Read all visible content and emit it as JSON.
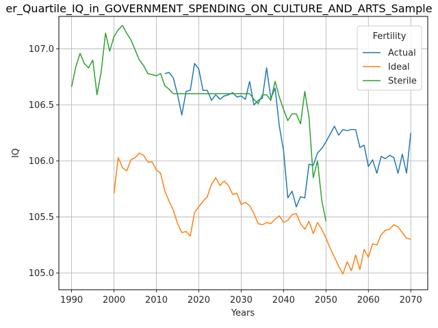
{
  "chart_data": {
    "type": "line",
    "title": "er_Quartile_IQ_in_GOVERNMENT_SPENDING_ON_CULTURE_AND_ARTS_Sample",
    "xlabel": "Years",
    "ylabel": "IQ",
    "xlim": [
      1987,
      2074
    ],
    "ylim": [
      104.85,
      107.29
    ],
    "xticks": [
      1990,
      2000,
      2010,
      2020,
      2030,
      2040,
      2050,
      2060,
      2070
    ],
    "yticks": [
      105.0,
      105.5,
      106.0,
      106.5,
      107.0
    ],
    "ytick_labels": [
      "105.0",
      "105.5",
      "106.0",
      "106.5",
      "107.0"
    ],
    "grid": true,
    "legend": {
      "title": "Fertility",
      "position": "top-right"
    },
    "series": [
      {
        "name": "Actual",
        "color": "#1f77b4",
        "x": [
          2012,
          2013,
          2014,
          2015,
          2016,
          2017,
          2018,
          2019,
          2020,
          2021,
          2022,
          2023,
          2024,
          2025,
          2026,
          2027,
          2028,
          2029,
          2030,
          2031,
          2032,
          2033,
          2034,
          2035,
          2036,
          2037,
          2038,
          2039,
          2040,
          2041,
          2042,
          2043,
          2044,
          2045,
          2046,
          2047,
          2048,
          2049,
          2050,
          2051,
          2052,
          2053,
          2054,
          2055,
          2056,
          2057,
          2058,
          2059,
          2060,
          2061,
          2062,
          2063,
          2064,
          2065,
          2066,
          2067,
          2068,
          2069,
          2070
        ],
        "y": [
          106.78,
          106.79,
          106.74,
          106.59,
          106.41,
          106.62,
          106.63,
          106.87,
          106.82,
          106.63,
          106.63,
          106.54,
          106.59,
          106.55,
          106.58,
          106.59,
          106.61,
          106.57,
          106.58,
          106.55,
          106.71,
          106.5,
          106.54,
          106.56,
          106.83,
          106.56,
          106.65,
          106.31,
          106.09,
          105.67,
          105.73,
          105.59,
          105.68,
          105.67,
          105.97,
          105.96,
          106.07,
          106.11,
          106.17,
          106.24,
          106.31,
          106.23,
          106.28,
          106.27,
          106.28,
          106.28,
          106.12,
          106.14,
          105.95,
          106.01,
          105.89,
          106.04,
          106.02,
          106.05,
          106.03,
          105.89,
          106.06,
          105.89,
          106.25
        ]
      },
      {
        "name": "Ideal",
        "color": "#ff7f0e",
        "x": [
          2000,
          2001,
          2002,
          2003,
          2004,
          2005,
          2006,
          2007,
          2008,
          2009,
          2010,
          2011,
          2012,
          2013,
          2014,
          2015,
          2016,
          2017,
          2018,
          2019,
          2020,
          2021,
          2022,
          2023,
          2024,
          2025,
          2026,
          2027,
          2028,
          2029,
          2030,
          2031,
          2032,
          2033,
          2034,
          2035,
          2036,
          2037,
          2038,
          2039,
          2040,
          2041,
          2042,
          2043,
          2044,
          2045,
          2046,
          2047,
          2048,
          2049,
          2050,
          2051,
          2052,
          2053,
          2054,
          2055,
          2056,
          2057,
          2058,
          2059,
          2060,
          2061,
          2062,
          2063,
          2064,
          2065,
          2066,
          2067,
          2068,
          2069,
          2070
        ],
        "y": [
          105.71,
          106.03,
          105.94,
          105.91,
          106.01,
          106.03,
          106.07,
          106.05,
          105.99,
          105.99,
          105.92,
          105.89,
          105.73,
          105.64,
          105.56,
          105.44,
          105.36,
          105.37,
          105.33,
          105.54,
          105.59,
          105.64,
          105.68,
          105.79,
          105.85,
          105.78,
          105.82,
          105.78,
          105.7,
          105.71,
          105.61,
          105.63,
          105.6,
          105.53,
          105.44,
          105.43,
          105.45,
          105.44,
          105.48,
          105.51,
          105.45,
          105.47,
          105.52,
          105.53,
          105.44,
          105.39,
          105.46,
          105.35,
          105.45,
          105.39,
          105.31,
          105.22,
          105.14,
          105.06,
          104.99,
          105.1,
          105.02,
          105.16,
          105.03,
          105.21,
          105.14,
          105.26,
          105.25,
          105.34,
          105.38,
          105.39,
          105.43,
          105.41,
          105.36,
          105.31,
          105.3
        ]
      },
      {
        "name": "Sterile",
        "color": "#2ca02c",
        "x": [
          1990,
          1991,
          1992,
          1993,
          1994,
          1995,
          1996,
          1997,
          1998,
          1999,
          2000,
          2001,
          2002,
          2003,
          2004,
          2005,
          2006,
          2007,
          2008,
          2009,
          2010,
          2011,
          2012,
          2013,
          2014,
          2015,
          2016,
          2017,
          2018,
          2019,
          2020,
          2021,
          2022,
          2023,
          2024,
          2025,
          2026,
          2027,
          2028,
          2029,
          2030,
          2031,
          2032,
          2033,
          2034,
          2035,
          2036,
          2037,
          2038,
          2039,
          2040,
          2041,
          2042,
          2043,
          2044,
          2045,
          2046,
          2047,
          2048,
          2049,
          2050
        ],
        "y": [
          106.66,
          106.84,
          106.96,
          106.87,
          106.83,
          106.9,
          106.59,
          106.8,
          107.14,
          106.98,
          107.11,
          107.17,
          107.21,
          107.14,
          107.08,
          106.99,
          106.9,
          106.85,
          106.78,
          106.77,
          106.76,
          106.78,
          106.67,
          106.64,
          106.6,
          106.6,
          106.6,
          106.6,
          106.6,
          106.6,
          106.6,
          106.6,
          106.6,
          106.6,
          106.6,
          106.6,
          106.6,
          106.6,
          106.6,
          106.6,
          106.6,
          106.6,
          106.6,
          106.55,
          106.51,
          106.59,
          106.59,
          106.54,
          106.71,
          106.57,
          106.46,
          106.36,
          106.42,
          106.42,
          106.33,
          106.62,
          106.39,
          105.85,
          106.0,
          105.65,
          105.46
        ]
      }
    ]
  }
}
